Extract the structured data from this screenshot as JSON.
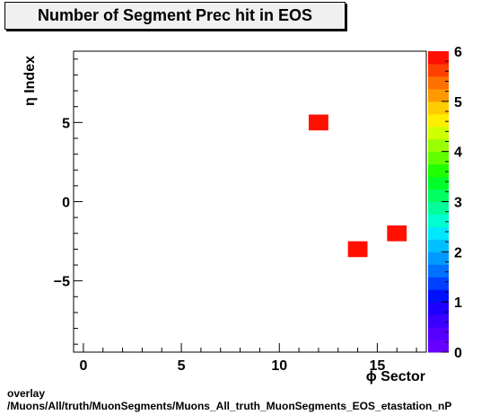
{
  "chart_data": {
    "type": "heatmap",
    "title": "Number of Segment Prec hit in EOS",
    "xlabel": "ϕ Sector",
    "ylabel": "η Index",
    "xlim": [
      -0.5,
      17.5
    ],
    "ylim": [
      -9.5,
      9.5
    ],
    "x_ticks": [
      0,
      5,
      10,
      15
    ],
    "y_ticks": [
      -5,
      0,
      5
    ],
    "z_range": [
      0,
      6
    ],
    "z_ticks": [
      0,
      1,
      2,
      3,
      4,
      5,
      6
    ],
    "cells": [
      {
        "x": 12,
        "y": 5,
        "z": 6
      },
      {
        "x": 14,
        "y": -3,
        "z": 6
      },
      {
        "x": 16,
        "y": -2,
        "z": 6
      }
    ],
    "palette": [
      "#6600ff",
      "#5500ff",
      "#3a00ff",
      "#1f00ff",
      "#0010ff",
      "#0040ff",
      "#0070ff",
      "#0099ff",
      "#00c0ff",
      "#00e8ff",
      "#00ffd0",
      "#00ff9a",
      "#00ff60",
      "#00ff28",
      "#20ff00",
      "#60ff00",
      "#9aff00",
      "#d0ff00",
      "#ffee00",
      "#ffcc00",
      "#ff9900",
      "#ff7000",
      "#ff4000",
      "#ff1000"
    ]
  },
  "footer": {
    "line1": "overlay",
    "line2": "/Muons/All/truth/MuonSegments/Muons_All_truth_MuonSegments_EOS_etastation_nP"
  }
}
